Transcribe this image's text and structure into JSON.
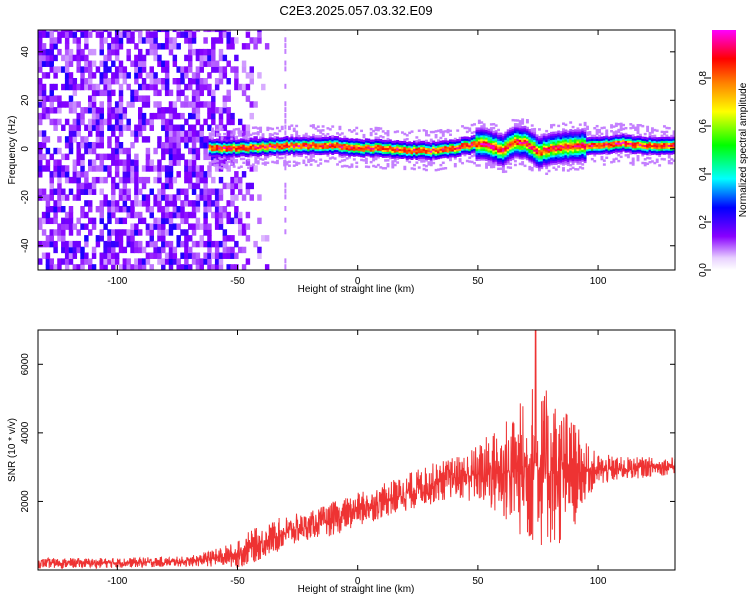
{
  "chart_data": [
    {
      "type": "heatmap",
      "title": "C2E3.2025.057.03.32.E09",
      "xlabel": "Height of straight line (km)",
      "ylabel": "Frequency (Hz)",
      "xlim": [
        -133,
        132
      ],
      "ylim": [
        -50,
        49
      ],
      "xticks": [
        -100,
        -50,
        0,
        50,
        100
      ],
      "yticks": [
        -40,
        -20,
        0,
        20,
        40
      ],
      "colorbar": {
        "label": "Normalized spectral amplitude",
        "range": [
          0,
          1
        ],
        "ticks": [
          0.0,
          0.2,
          0.4,
          0.6,
          0.8
        ],
        "tick_labels": [
          "0.0",
          "0.2",
          "0.4",
          "0.6",
          "0.8"
        ],
        "colormap": [
          "#ffffff",
          "#8800ff",
          "#0000ff",
          "#00ffff",
          "#00ff00",
          "#ffff00",
          "#ff8000",
          "#ff0000",
          "#ff00ff"
        ]
      },
      "noise_region_x": [
        -133,
        -50
      ],
      "signal_onset_km": -62,
      "ridge": {
        "x": [
          -62,
          -50,
          -30,
          -10,
          0,
          10,
          20,
          30,
          40,
          50,
          55,
          60,
          65,
          70,
          75,
          80,
          90,
          100,
          110,
          120,
          132
        ],
        "freq_hz": [
          0,
          0,
          1,
          1,
          0,
          0,
          -1,
          -1,
          0,
          2,
          1,
          -1,
          3,
          2,
          -2,
          0,
          1,
          1,
          2,
          1,
          1
        ]
      },
      "grid": false
    },
    {
      "type": "line",
      "xlabel": "Height of straight line (km)",
      "ylabel": "SNR (10 * v/v)",
      "xlim": [
        -133,
        132
      ],
      "ylim": [
        0,
        7000
      ],
      "xticks": [
        -100,
        -50,
        0,
        50,
        100
      ],
      "yticks": [
        2000,
        4000,
        6000
      ],
      "series": [
        {
          "color": "#ee3333",
          "x": [
            -133,
            -110,
            -90,
            -70,
            -60,
            -50,
            -45,
            -40,
            -30,
            -20,
            -10,
            0,
            10,
            20,
            30,
            40,
            50,
            55,
            60,
            65,
            70,
            72,
            75,
            80,
            85,
            90,
            95,
            100,
            110,
            120,
            132
          ],
          "mean": [
            200,
            200,
            220,
            250,
            350,
            450,
            650,
            800,
            1100,
            1300,
            1500,
            1750,
            2000,
            2250,
            2500,
            2700,
            2800,
            2850,
            2850,
            2900,
            2950,
            3100,
            3000,
            2900,
            2800,
            2800,
            2900,
            2900,
            2950,
            3000,
            3050
          ],
          "amplitude": [
            150,
            150,
            150,
            150,
            250,
            400,
            500,
            500,
            500,
            400,
            500,
            500,
            500,
            550,
            600,
            600,
            900,
            1200,
            1500,
            1800,
            2200,
            2500,
            2400,
            2300,
            2200,
            1600,
            800,
            500,
            350,
            300,
            250
          ]
        }
      ],
      "peak": {
        "x": 74,
        "y": 7000
      },
      "grid": false
    }
  ]
}
